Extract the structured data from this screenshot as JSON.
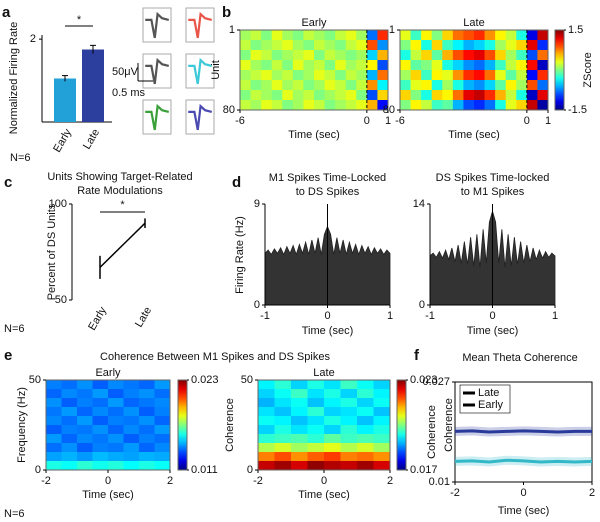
{
  "chart_data": [
    {
      "type": "bar",
      "panel": "a",
      "ylabel": "Normalized Firing Rate",
      "categories": [
        "Early",
        "Late"
      ],
      "values": [
        1.05,
        1.75
      ],
      "errors": [
        0.07,
        0.1
      ],
      "colors": [
        "#22a0d8",
        "#2c3e9e"
      ],
      "ylim": [
        0,
        2.1
      ],
      "yticks": [
        2
      ],
      "significance": "*",
      "n_label": "N=6",
      "scale_labels": [
        "50μV",
        "0.5 ms"
      ],
      "waveform_colors": [
        "#555555",
        "#e8564a",
        "#555555",
        "#3cc8d8",
        "#3aa03a",
        "#4a4ab0"
      ]
    },
    {
      "type": "heatmap",
      "panel": "b",
      "ylabel": "Unit",
      "xlabel": "Time (sec)",
      "xlim": [
        -6,
        1
      ],
      "xticks": [
        -6,
        0,
        1
      ],
      "ylim": [
        1,
        80
      ],
      "yticks": [
        1,
        80
      ],
      "yaxis_inverted": true,
      "clim": [
        -1.5,
        1.5
      ],
      "cticks": [
        -1.5,
        1.5
      ],
      "clabel": "ZScore",
      "event_line": 0,
      "panels": [
        {
          "title": "Early",
          "values": [
            [
              0.1,
              0.2,
              0,
              0.3,
              0.1,
              0,
              0.2,
              0.1,
              0,
              0.2,
              0.3,
              0.1,
              -0.8,
              1.0
            ],
            [
              0.2,
              0,
              0.1,
              0.2,
              0.3,
              0.1,
              0,
              0.2,
              0.1,
              0,
              0.2,
              0.3,
              0.9,
              -0.7
            ],
            [
              0,
              0.3,
              0.2,
              0,
              0.1,
              0.2,
              0.3,
              0,
              0.2,
              0.1,
              0,
              0.1,
              -0.5,
              0.6
            ],
            [
              0.3,
              0.1,
              0,
              0.2,
              0,
              0.3,
              0.1,
              0.2,
              0,
              0.3,
              0.1,
              0.2,
              0.4,
              -0.9
            ],
            [
              0.1,
              0.2,
              0.3,
              0.1,
              0.2,
              0,
              0.1,
              0.3,
              0.2,
              0,
              0.2,
              0.1,
              -0.6,
              0.8
            ],
            [
              0.2,
              0,
              0.1,
              0.3,
              0.1,
              0.2,
              0,
              0.1,
              0.3,
              0.2,
              0,
              0.2,
              0.7,
              -0.4
            ],
            [
              0,
              0.2,
              0.1,
              0,
              0.3,
              0.1,
              0.2,
              0,
              0.1,
              0.2,
              0.3,
              0,
              -0.9,
              0.5
            ],
            [
              0.2,
              0.1,
              0.3,
              0.2,
              0,
              0.1,
              0.3,
              0.2,
              0,
              0.1,
              0.2,
              0.3,
              0.6,
              -1.1
            ]
          ]
        },
        {
          "title": "Late",
          "values": [
            [
              0.3,
              -0.2,
              0.4,
              0,
              0.5,
              0.8,
              0.9,
              1.0,
              0.7,
              0.4,
              0.2,
              -0.3,
              -1.2,
              1.3
            ],
            [
              0,
              0.4,
              -0.3,
              0.5,
              -0.2,
              -0.4,
              -0.6,
              -0.5,
              -0.3,
              0.1,
              0.3,
              0.5,
              1.2,
              -1.0
            ],
            [
              -0.3,
              0.2,
              0.5,
              -0.1,
              0.6,
              0.9,
              1.1,
              1.2,
              0.9,
              0.5,
              0.1,
              -0.2,
              -0.9,
              0.8
            ],
            [
              0.4,
              -0.1,
              0,
              0.3,
              -0.3,
              -0.5,
              -0.7,
              -0.8,
              -0.6,
              -0.2,
              0.2,
              0.4,
              1.1,
              -1.3
            ],
            [
              0.1,
              0.5,
              -0.2,
              0.4,
              0.3,
              0.7,
              1.0,
              1.1,
              0.8,
              0.3,
              -0.1,
              0.2,
              -1.1,
              1.0
            ],
            [
              -0.2,
              0.3,
              0.4,
              -0.3,
              0.1,
              -0.3,
              -0.6,
              -0.7,
              -0.5,
              -0.1,
              0.4,
              0.1,
              0.9,
              -0.8
            ],
            [
              0.5,
              0,
              -0.3,
              0.5,
              0.4,
              0.8,
              1.2,
              1.3,
              1.0,
              0.6,
              0.2,
              -0.3,
              -1.3,
              1.2
            ],
            [
              0,
              0.4,
              0.2,
              -0.2,
              -0.1,
              -0.6,
              -0.9,
              -1.0,
              -0.8,
              -0.3,
              0.3,
              0.5,
              1.3,
              -1.4
            ]
          ]
        }
      ]
    },
    {
      "type": "errorline",
      "panel": "c",
      "title": [
        "Units Showing Target-Related",
        "Rate Modulations"
      ],
      "ylabel": "Percent of DS Units",
      "categories": [
        "Early",
        "Late"
      ],
      "values": [
        67,
        90
      ],
      "errors": [
        6,
        2.5
      ],
      "ylim": [
        50,
        100
      ],
      "yticks": [
        50,
        100
      ],
      "significance": "*",
      "n_label": "N=6"
    },
    {
      "type": "area",
      "panel": "d",
      "ylabel": "Firing Rate (Hz)",
      "xlabel": "Time (sec)",
      "xlim": [
        -1,
        1
      ],
      "xticks": [
        -1,
        0,
        1
      ],
      "event_line": 0,
      "color": "#333333",
      "x": [
        -1,
        -0.95,
        -0.9,
        -0.85,
        -0.8,
        -0.75,
        -0.7,
        -0.65,
        -0.6,
        -0.55,
        -0.5,
        -0.45,
        -0.4,
        -0.35,
        -0.3,
        -0.25,
        -0.2,
        -0.15,
        -0.1,
        -0.05,
        0,
        0.05,
        0.1,
        0.15,
        0.2,
        0.25,
        0.3,
        0.35,
        0.4,
        0.45,
        0.5,
        0.55,
        0.6,
        0.65,
        0.7,
        0.75,
        0.8,
        0.85,
        0.9,
        0.95,
        1
      ],
      "plots": [
        {
          "title": [
            "M1 Spikes Time-Locked",
            "to DS Spikes"
          ],
          "ylim": [
            0,
            9
          ],
          "yticks": [
            0,
            9
          ],
          "values": [
            4.6,
            4.9,
            4.5,
            5.0,
            4.6,
            5.1,
            4.5,
            5.2,
            4.6,
            5.3,
            4.5,
            5.4,
            4.6,
            5.6,
            4.5,
            5.8,
            4.6,
            6.0,
            4.5,
            6.3,
            7.0,
            6.3,
            4.5,
            6.0,
            4.6,
            5.8,
            4.5,
            5.6,
            4.6,
            5.4,
            4.5,
            5.3,
            4.6,
            5.2,
            4.5,
            5.1,
            4.6,
            5.0,
            4.5,
            4.9,
            4.6
          ]
        },
        {
          "title": [
            "DS Spikes Time-locked",
            "to M1 Spikes"
          ],
          "ylim": [
            0,
            14
          ],
          "yticks": [
            0,
            14
          ],
          "values": [
            6.8,
            7.2,
            6.6,
            7.4,
            6.5,
            7.6,
            6.3,
            7.9,
            6.0,
            8.3,
            5.8,
            8.8,
            5.6,
            9.4,
            5.4,
            9.8,
            5.2,
            10.5,
            5.8,
            11.5,
            13.0,
            11.5,
            5.8,
            10.5,
            5.2,
            9.8,
            5.4,
            9.4,
            5.6,
            8.8,
            5.8,
            8.3,
            6.0,
            7.9,
            6.3,
            7.6,
            6.5,
            7.4,
            6.6,
            7.2,
            6.8
          ]
        }
      ]
    },
    {
      "type": "heatmap",
      "panel": "e",
      "title": "Coherence Between M1 Spikes and DS Spikes",
      "ylabel": "Frequency (Hz)",
      "xlabel": "Time (sec)",
      "xlim": [
        -2,
        2
      ],
      "xticks": [
        -2,
        0,
        2
      ],
      "ylim": [
        0,
        50
      ],
      "yticks": [
        0,
        50
      ],
      "clabel": "Coherence",
      "n_label": "N=6",
      "panels": [
        {
          "title": "Early",
          "clim": [
            0.011,
            0.023
          ],
          "cticks": [
            0.011,
            0.023
          ],
          "values": [
            [
              0.014,
              0.0138,
              0.0142,
              0.0136,
              0.0141,
              0.0139,
              0.0137,
              0.0143
            ],
            [
              0.0137,
              0.0141,
              0.0139,
              0.0143,
              0.0136,
              0.014,
              0.0142,
              0.0138
            ],
            [
              0.0142,
              0.0136,
              0.014,
              0.0138,
              0.0143,
              0.0137,
              0.0139,
              0.0141
            ],
            [
              0.0139,
              0.0143,
              0.0137,
              0.0141,
              0.0138,
              0.0142,
              0.0136,
              0.014
            ],
            [
              0.0141,
              0.0138,
              0.0143,
              0.0136,
              0.014,
              0.0139,
              0.0142,
              0.0137
            ],
            [
              0.0136,
              0.014,
              0.0139,
              0.0142,
              0.0137,
              0.0141,
              0.0138,
              0.0143
            ],
            [
              0.0143,
              0.0137,
              0.0141,
              0.0139,
              0.0142,
              0.0136,
              0.014,
              0.0138
            ],
            [
              0.0138,
              0.0142,
              0.0136,
              0.014,
              0.0139,
              0.0143,
              0.0137,
              0.0141
            ],
            [
              0.0144,
              0.0146,
              0.0143,
              0.0147,
              0.0145,
              0.0144,
              0.0146,
              0.0145
            ],
            [
              0.0158,
              0.0156,
              0.016,
              0.0157,
              0.0159,
              0.0155,
              0.0158,
              0.0156
            ]
          ]
        },
        {
          "title": "Late",
          "clim": [
            0.017,
            0.023
          ],
          "cticks": [
            0.017,
            0.023
          ],
          "values": [
            [
              0.0192,
              0.0195,
              0.019,
              0.0194,
              0.0191,
              0.0196,
              0.0193,
              0.019
            ],
            [
              0.019,
              0.0193,
              0.0196,
              0.0191,
              0.0194,
              0.019,
              0.0195,
              0.0192
            ],
            [
              0.0188,
              0.0191,
              0.0193,
              0.0189,
              0.0192,
              0.0194,
              0.019,
              0.0193
            ],
            [
              0.0191,
              0.0189,
              0.0192,
              0.0195,
              0.019,
              0.0191,
              0.0193,
              0.0189
            ],
            [
              0.0193,
              0.0192,
              0.0189,
              0.0191,
              0.0194,
              0.0192,
              0.0189,
              0.0192
            ],
            [
              0.019,
              0.0194,
              0.0191,
              0.0193,
              0.019,
              0.0195,
              0.0192,
              0.0194
            ],
            [
              0.0195,
              0.0196,
              0.0197,
              0.0195,
              0.0198,
              0.0196,
              0.0197,
              0.0196
            ],
            [
              0.0203,
              0.0205,
              0.0202,
              0.0204,
              0.0206,
              0.0203,
              0.0205,
              0.0202
            ],
            [
              0.0215,
              0.0218,
              0.0214,
              0.0217,
              0.0219,
              0.0215,
              0.0216,
              0.0214
            ],
            [
              0.0226,
              0.0228,
              0.0225,
              0.0229,
              0.0227,
              0.0226,
              0.0228,
              0.0225
            ]
          ]
        }
      ]
    },
    {
      "type": "line",
      "panel": "f",
      "title": "Mean Theta Coherence",
      "ylabel": "Coherence",
      "xlabel": "Time (sec)",
      "x": [
        -2,
        -1.5,
        -1,
        -0.5,
        0,
        0.5,
        1,
        1.5,
        2
      ],
      "xlim": [
        -2,
        2
      ],
      "xticks": [
        -2,
        0,
        2
      ],
      "ylim": [
        0.01,
        0.027
      ],
      "yticks": [
        0.01,
        0.027
      ],
      "legend": "top-left",
      "series": [
        {
          "name": "Late",
          "color": "#2a3a9a",
          "values": [
            0.0186,
            0.0187,
            0.0185,
            0.0186,
            0.0187,
            0.0186,
            0.0185,
            0.0186,
            0.0186
          ]
        },
        {
          "name": "Early",
          "color": "#33b8c8",
          "values": [
            0.0135,
            0.0136,
            0.0134,
            0.0137,
            0.0136,
            0.0134,
            0.0135,
            0.0134,
            0.0135
          ]
        }
      ]
    }
  ]
}
